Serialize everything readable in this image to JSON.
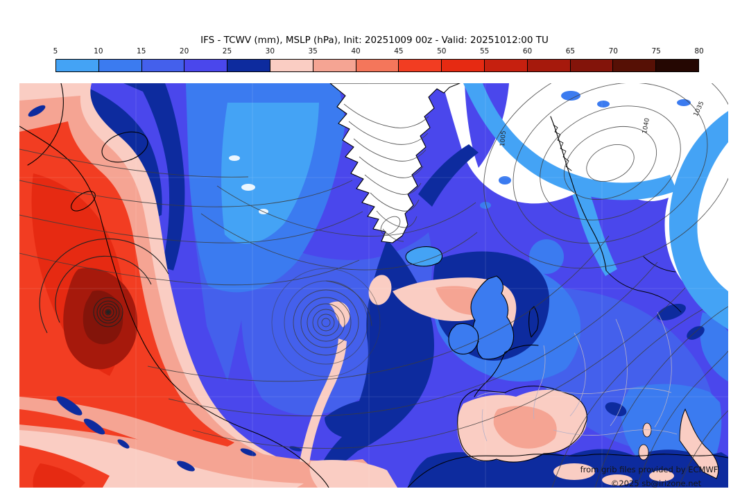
{
  "header": {
    "title": "IFS - TCWV (mm), MSLP (hPa), Init: 20251009 00z - Valid: 20251012:00 TU"
  },
  "colorbar": {
    "tick_labels": [
      "5",
      "10",
      "15",
      "20",
      "25",
      "30",
      "35",
      "40",
      "45",
      "50",
      "55",
      "60",
      "65",
      "70",
      "75",
      "80"
    ],
    "segment_colors": [
      "#44A3F5",
      "#3B7BF0",
      "#4460EC",
      "#4A47EC",
      "#0D2B9E",
      "#FACDC3",
      "#F5A493",
      "#F4765B",
      "#F23D22",
      "#E62A12",
      "#C6200F",
      "#A6190C",
      "#83140A",
      "#561005",
      "#250702"
    ]
  },
  "map": {
    "contour_labels": {
      "l1": "1040",
      "l2": "1035",
      "l3": "1005"
    },
    "attribution": {
      "line1": "from grib files provided by ECMWF",
      "line2": "©2025 sb@irizone.net"
    }
  },
  "chart_data": {
    "type": "heatmap",
    "title": "IFS - TCWV (mm), MSLP (hPa), Init: 20251009 00z - Valid: 20251012:00 TU",
    "model": "IFS",
    "init": "20251009 00z",
    "valid": "20251012:00 TU",
    "region": "North Atlantic, Greenland and Europe",
    "shaded_field": {
      "name": "TCWV",
      "units": "mm",
      "scale_ticks": [
        5,
        10,
        15,
        20,
        25,
        30,
        35,
        40,
        45,
        50,
        55,
        60,
        65,
        70,
        75,
        80
      ],
      "palette": [
        "#44A3F5",
        "#3B7BF0",
        "#4460EC",
        "#4A47EC",
        "#0D2B9E",
        "#FACDC3",
        "#F5A493",
        "#F4765B",
        "#F23D22",
        "#E62A12",
        "#C6200F",
        "#A6190C",
        "#83140A",
        "#561005",
        "#250702"
      ],
      "below_scale_color": "#FFFFFF"
    },
    "contour_field": {
      "name": "MSLP",
      "units": "hPa",
      "labeled_isobars": [
        1040,
        1035,
        1005
      ]
    },
    "legend_position": "top",
    "notable_features": [
      "Very moist plume (45-70 mm TCWV) off the North American east coast",
      "Tropical cyclone with tight closed isobar spiral embedded in 55-70 mm air in the western Atlantic",
      "Dry air (<5 mm) over the Greenland ice sheet with dense terrain-following contours",
      "Dry 1040 hPa high north of Scandinavia with arcs of 5-10 mm moisture",
      "Occluded mid-Atlantic low with spiral isobars and a 30-40 mm frontal moisture band",
      "30-40 mm moist area over Iberia; 15-25 mm over the UK, Ireland and central Europe"
    ]
  }
}
